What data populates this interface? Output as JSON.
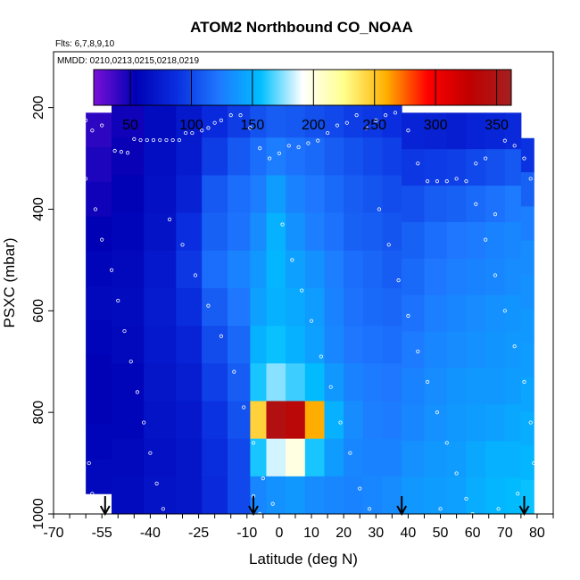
{
  "chart_data": {
    "type": "heatmap",
    "title": "ATOM2 Northbound CO_NOAA",
    "flights_note": "Flts: 6,7,8,9,10",
    "dates_note": "MMDD: 0210,0213,0215,0218,0219",
    "xlabel": "Latitude (deg N)",
    "ylabel": "PSXC (mbar)",
    "xlim": [
      -70,
      85
    ],
    "ylim": [
      1000,
      90
    ],
    "x_ticks": [
      -70,
      -55,
      -40,
      -25,
      -10,
      0,
      10,
      20,
      30,
      40,
      50,
      60,
      70,
      80
    ],
    "y_ticks": [
      200,
      400,
      600,
      800,
      1000
    ],
    "colorbar": {
      "range": [
        20,
        362
      ],
      "ticks": [
        50,
        100,
        150,
        200,
        250,
        300,
        350
      ],
      "colors": [
        "#7a10d8",
        "#0000b4",
        "#0a2fe0",
        "#1e78ff",
        "#00bfff",
        "#ffffff",
        "#ffff8c",
        "#ffb000",
        "#ff0000",
        "#c00000",
        "#a52020"
      ]
    },
    "arrows_lat": [
      -54,
      -8,
      38,
      76
    ],
    "profiles": [
      {
        "lat0": -60,
        "lat1": -52,
        "ptop": 210,
        "pbot": 960,
        "co": [
          42,
          46,
          50,
          55,
          58,
          60,
          58,
          56,
          56,
          58,
          60
        ]
      },
      {
        "lat0": -52,
        "lat1": -42,
        "ptop": 185,
        "pbot": 1000,
        "co": [
          50,
          52,
          56,
          58,
          60,
          62,
          60,
          58,
          58,
          60,
          62
        ]
      },
      {
        "lat0": -42,
        "lat1": -32,
        "ptop": 185,
        "pbot": 1000,
        "co": [
          62,
          64,
          66,
          68,
          72,
          74,
          72,
          70,
          68,
          66,
          68
        ]
      },
      {
        "lat0": -32,
        "lat1": -24,
        "ptop": 185,
        "pbot": 1000,
        "co": [
          72,
          74,
          78,
          88,
          92,
          86,
          80,
          76,
          72,
          70,
          70
        ]
      },
      {
        "lat0": -24,
        "lat1": -16,
        "ptop": 185,
        "pbot": 1000,
        "co": [
          85,
          95,
          108,
          112,
          118,
          110,
          102,
          96,
          90,
          86,
          84
        ]
      },
      {
        "lat0": -16,
        "lat1": -9,
        "ptop": 185,
        "pbot": 1000,
        "co": [
          95,
          108,
          118,
          120,
          128,
          122,
          115,
          110,
          105,
          100,
          100
        ]
      },
      {
        "lat0": -9,
        "lat1": -4,
        "ptop": 185,
        "pbot": 1000,
        "co": [
          105,
          118,
          125,
          132,
          138,
          142,
          150,
          160,
          245,
          160,
          130
        ]
      },
      {
        "lat0": -4,
        "lat1": 2,
        "ptop": 185,
        "pbot": 1000,
        "co": [
          110,
          125,
          140,
          150,
          152,
          150,
          158,
          175,
          345,
          185,
          135
        ]
      },
      {
        "lat0": 2,
        "lat1": 8,
        "ptop": 185,
        "pbot": 1000,
        "co": [
          108,
          120,
          128,
          135,
          142,
          146,
          150,
          165,
          335,
          200,
          138
        ]
      },
      {
        "lat0": 8,
        "lat1": 14,
        "ptop": 185,
        "pbot": 1000,
        "co": [
          104,
          116,
          122,
          126,
          135,
          140,
          142,
          155,
          260,
          160,
          132
        ]
      },
      {
        "lat0": 14,
        "lat1": 20,
        "ptop": 185,
        "pbot": 1000,
        "co": [
          100,
          110,
          116,
          120,
          126,
          128,
          130,
          138,
          150,
          140,
          130
        ]
      },
      {
        "lat0": 20,
        "lat1": 26,
        "ptop": 185,
        "pbot": 1000,
        "co": [
          95,
          105,
          110,
          112,
          118,
          120,
          122,
          128,
          132,
          130,
          128
        ]
      },
      {
        "lat0": 26,
        "lat1": 32,
        "ptop": 185,
        "pbot": 1000,
        "co": [
          92,
          100,
          106,
          110,
          114,
          116,
          120,
          124,
          126,
          128,
          130
        ]
      },
      {
        "lat0": 32,
        "lat1": 38,
        "ptop": 185,
        "pbot": 1000,
        "co": [
          88,
          96,
          102,
          106,
          110,
          114,
          118,
          122,
          124,
          128,
          132
        ]
      },
      {
        "lat0": 38,
        "lat1": 45,
        "ptop": 210,
        "pbot": 1000,
        "co": [
          80,
          92,
          104,
          112,
          116,
          120,
          124,
          128,
          130,
          134,
          138
        ]
      },
      {
        "lat0": 45,
        "lat1": 52,
        "ptop": 210,
        "pbot": 1000,
        "co": [
          78,
          94,
          110,
          118,
          122,
          126,
          130,
          132,
          134,
          138,
          140
        ]
      },
      {
        "lat0": 52,
        "lat1": 58,
        "ptop": 210,
        "pbot": 1000,
        "co": [
          76,
          96,
          112,
          122,
          126,
          130,
          132,
          136,
          138,
          140,
          142
        ]
      },
      {
        "lat0": 58,
        "lat1": 64,
        "ptop": 210,
        "pbot": 1000,
        "co": [
          80,
          100,
          116,
          124,
          128,
          132,
          134,
          138,
          140,
          145,
          148
        ]
      },
      {
        "lat0": 64,
        "lat1": 70,
        "ptop": 210,
        "pbot": 1000,
        "co": [
          82,
          104,
          120,
          128,
          130,
          134,
          136,
          138,
          142,
          150,
          152
        ]
      },
      {
        "lat0": 70,
        "lat1": 75,
        "ptop": 210,
        "pbot": 1000,
        "co": [
          84,
          108,
          124,
          130,
          132,
          136,
          138,
          140,
          145,
          150,
          155
        ]
      },
      {
        "lat0": 75,
        "lat1": 79,
        "ptop": 260,
        "pbot": 1000,
        "co": [
          90,
          112,
          126,
          132,
          134,
          138,
          140,
          144,
          148,
          152,
          158
        ]
      }
    ],
    "samples": [
      {
        "lat": -60,
        "p": 225
      },
      {
        "lat": -58,
        "p": 245
      },
      {
        "lat": -56,
        "p": 190
      },
      {
        "lat": -55,
        "p": 235
      },
      {
        "lat": -53,
        "p": 205
      },
      {
        "lat": -51,
        "p": 285
      },
      {
        "lat": -49,
        "p": 287
      },
      {
        "lat": -47,
        "p": 289
      },
      {
        "lat": -45,
        "p": 262
      },
      {
        "lat": -43,
        "p": 264
      },
      {
        "lat": -41,
        "p": 264
      },
      {
        "lat": -39,
        "p": 264
      },
      {
        "lat": -37,
        "p": 264
      },
      {
        "lat": -35,
        "p": 264
      },
      {
        "lat": -33,
        "p": 264
      },
      {
        "lat": -31,
        "p": 264
      },
      {
        "lat": -29,
        "p": 250
      },
      {
        "lat": -27,
        "p": 250
      },
      {
        "lat": -24,
        "p": 245
      },
      {
        "lat": -22,
        "p": 240
      },
      {
        "lat": -20,
        "p": 230
      },
      {
        "lat": -18,
        "p": 225
      },
      {
        "lat": -15,
        "p": 215
      },
      {
        "lat": -12,
        "p": 215
      },
      {
        "lat": -9,
        "p": 240
      },
      {
        "lat": -6,
        "p": 280
      },
      {
        "lat": -3,
        "p": 300
      },
      {
        "lat": 0,
        "p": 290
      },
      {
        "lat": 3,
        "p": 275
      },
      {
        "lat": 6,
        "p": 278
      },
      {
        "lat": 9,
        "p": 270
      },
      {
        "lat": 12,
        "p": 265
      },
      {
        "lat": 15,
        "p": 250
      },
      {
        "lat": 18,
        "p": 235
      },
      {
        "lat": 21,
        "p": 230
      },
      {
        "lat": 24,
        "p": 215
      },
      {
        "lat": 27,
        "p": 240
      },
      {
        "lat": 30,
        "p": 225
      },
      {
        "lat": 33,
        "p": 215
      },
      {
        "lat": 36,
        "p": 210
      },
      {
        "lat": 40,
        "p": 245
      },
      {
        "lat": 43,
        "p": 310
      },
      {
        "lat": 46,
        "p": 345
      },
      {
        "lat": 49,
        "p": 345
      },
      {
        "lat": 52,
        "p": 345
      },
      {
        "lat": 55,
        "p": 340
      },
      {
        "lat": 58,
        "p": 345
      },
      {
        "lat": 61,
        "p": 310
      },
      {
        "lat": 64,
        "p": 300
      },
      {
        "lat": 67,
        "p": 410
      },
      {
        "lat": 70,
        "p": 265
      },
      {
        "lat": 73,
        "p": 275
      },
      {
        "lat": 76,
        "p": 300
      },
      {
        "lat": 78,
        "p": 340
      },
      {
        "lat": -60,
        "p": 340
      },
      {
        "lat": -57,
        "p": 400
      },
      {
        "lat": -55,
        "p": 460
      },
      {
        "lat": -52,
        "p": 520
      },
      {
        "lat": -50,
        "p": 580
      },
      {
        "lat": -48,
        "p": 640
      },
      {
        "lat": -46,
        "p": 700
      },
      {
        "lat": -44,
        "p": 760
      },
      {
        "lat": -42,
        "p": 820
      },
      {
        "lat": -40,
        "p": 880
      },
      {
        "lat": -38,
        "p": 940
      },
      {
        "lat": -36,
        "p": 990
      },
      {
        "lat": -34,
        "p": 420
      },
      {
        "lat": -30,
        "p": 470
      },
      {
        "lat": -26,
        "p": 530
      },
      {
        "lat": -22,
        "p": 590
      },
      {
        "lat": -18,
        "p": 650
      },
      {
        "lat": -14,
        "p": 720
      },
      {
        "lat": -11,
        "p": 790
      },
      {
        "lat": -8,
        "p": 860
      },
      {
        "lat": -5,
        "p": 930
      },
      {
        "lat": -2,
        "p": 980
      },
      {
        "lat": 1,
        "p": 430
      },
      {
        "lat": 4,
        "p": 500
      },
      {
        "lat": 7,
        "p": 560
      },
      {
        "lat": 10,
        "p": 620
      },
      {
        "lat": 13,
        "p": 690
      },
      {
        "lat": 16,
        "p": 750
      },
      {
        "lat": 19,
        "p": 820
      },
      {
        "lat": 22,
        "p": 880
      },
      {
        "lat": 25,
        "p": 950
      },
      {
        "lat": 28,
        "p": 990
      },
      {
        "lat": 31,
        "p": 400
      },
      {
        "lat": 34,
        "p": 470
      },
      {
        "lat": 37,
        "p": 540
      },
      {
        "lat": 40,
        "p": 610
      },
      {
        "lat": 43,
        "p": 680
      },
      {
        "lat": 46,
        "p": 740
      },
      {
        "lat": 49,
        "p": 800
      },
      {
        "lat": 52,
        "p": 860
      },
      {
        "lat": 55,
        "p": 920
      },
      {
        "lat": 58,
        "p": 970
      },
      {
        "lat": 61,
        "p": 390
      },
      {
        "lat": 64,
        "p": 460
      },
      {
        "lat": 67,
        "p": 530
      },
      {
        "lat": 70,
        "p": 600
      },
      {
        "lat": 73,
        "p": 670
      },
      {
        "lat": 76,
        "p": 740
      },
      {
        "lat": 78,
        "p": 820
      },
      {
        "lat": 79,
        "p": 900
      },
      {
        "lat": 74,
        "p": 960
      },
      {
        "lat": 68,
        "p": 990
      },
      {
        "lat": -62,
        "p": 620
      },
      {
        "lat": -61,
        "p": 780
      },
      {
        "lat": -59,
        "p": 900
      },
      {
        "lat": -58,
        "p": 960
      },
      {
        "lat": -8,
        "p": 965
      },
      {
        "lat": -6,
        "p": 1000
      },
      {
        "lat": 60,
        "p": 1000
      },
      {
        "lat": 50,
        "p": 990
      }
    ]
  }
}
